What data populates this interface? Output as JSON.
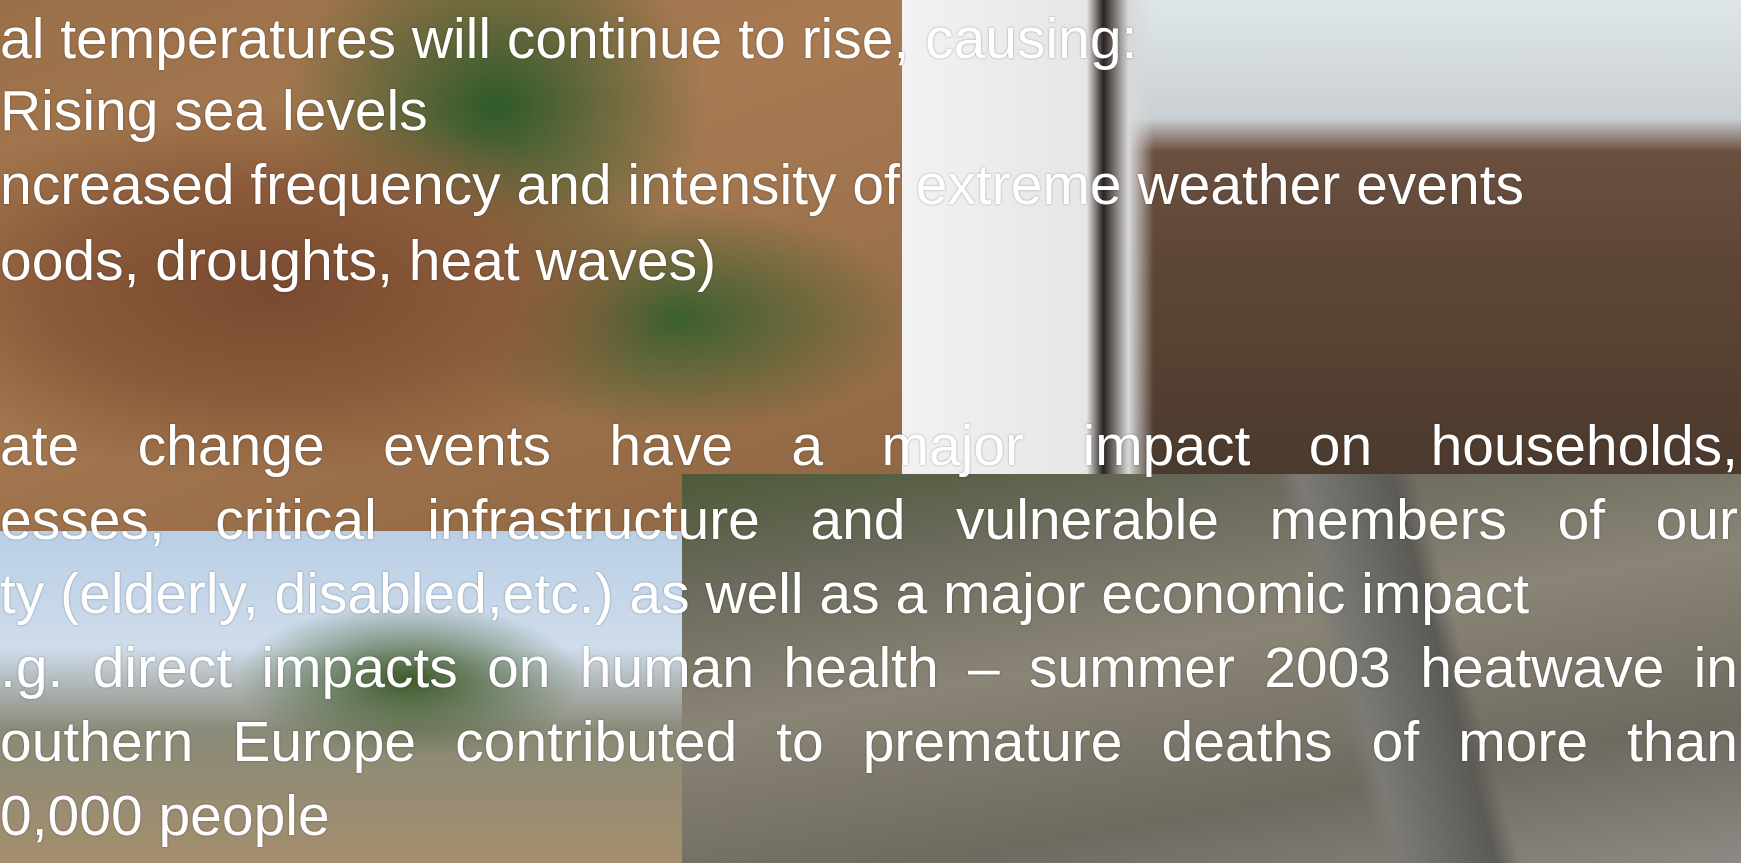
{
  "slide": {
    "lines": [
      "al temperatures will continue to rise, causing:",
      "Rising sea levels",
      "ncreased frequency and intensity of extreme weather events",
      "oods, droughts, heat waves)",
      "ate change events have a major impact on households,",
      "esses, critical infrastructure and vulnerable members of our",
      "ty (elderly, disabled,etc.) as well as a major economic impact",
      ".g. direct impacts on human health – summer 2003 heatwave in",
      "outhern Europe contributed to premature deaths of more than",
      "0,000 people"
    ]
  }
}
